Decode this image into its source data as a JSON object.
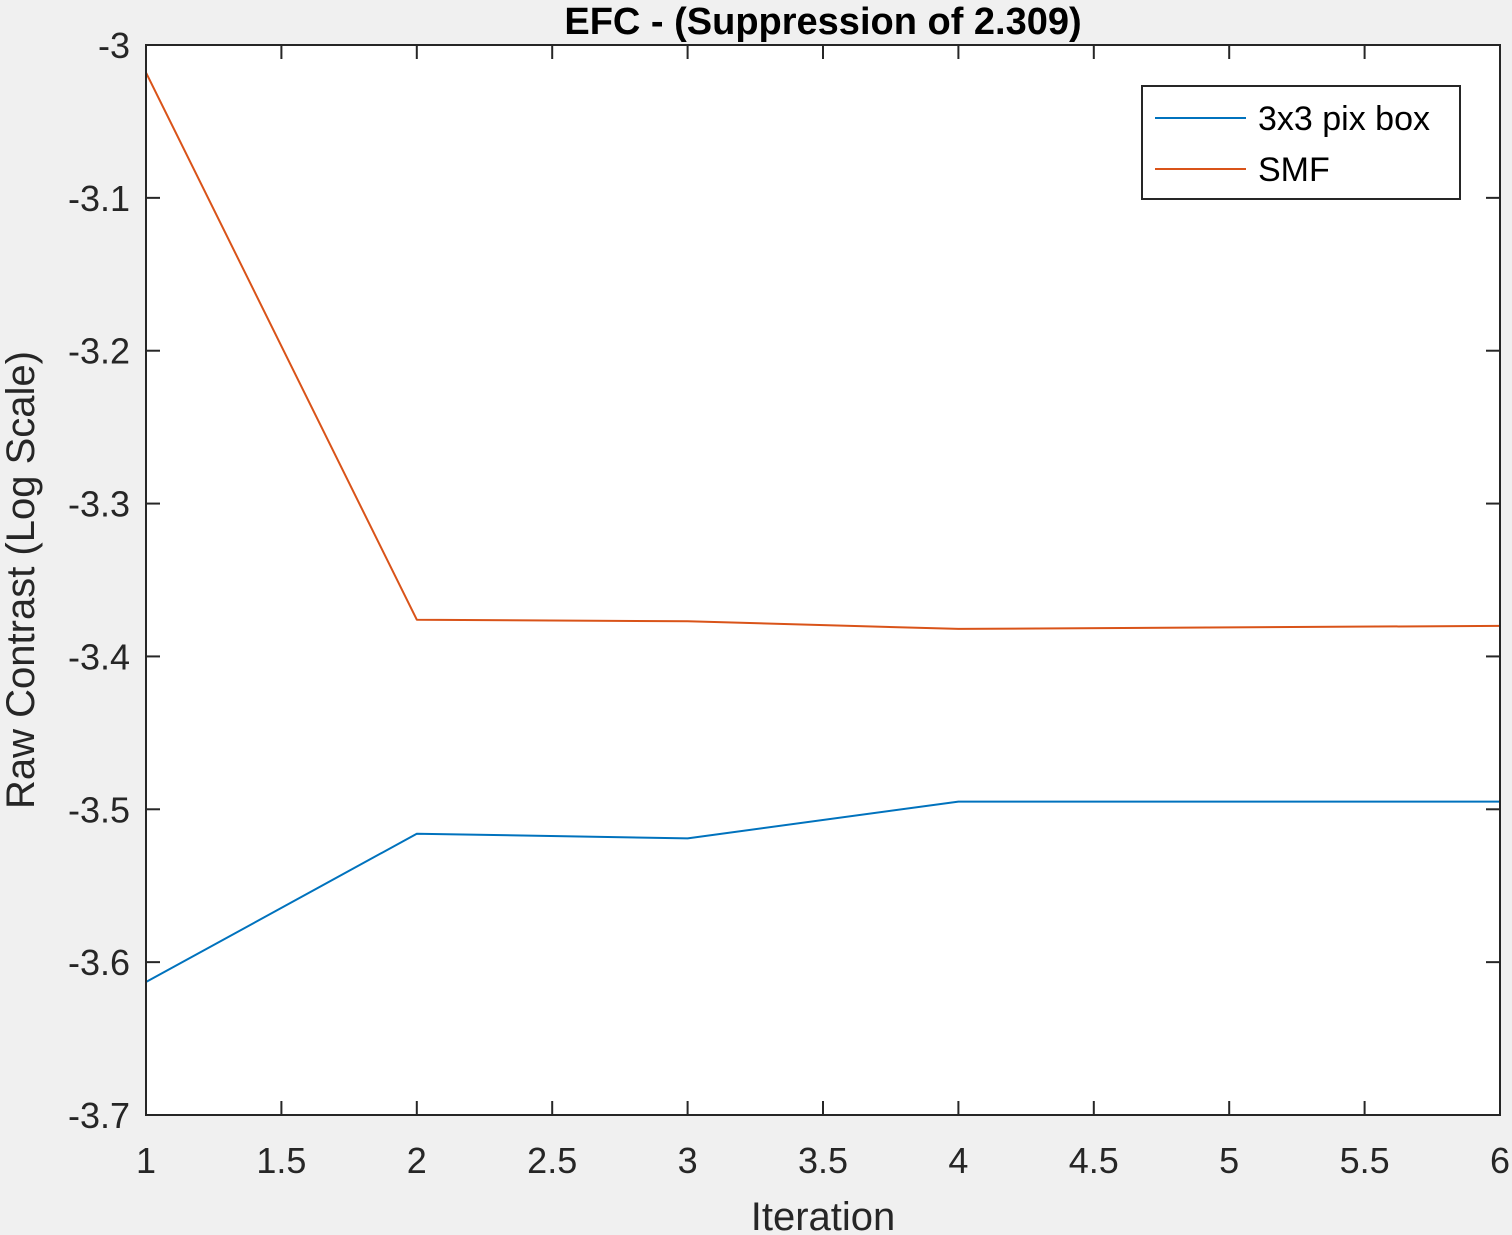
{
  "chart_data": {
    "type": "line",
    "title": "EFC -  (Suppression of 2.309)",
    "xlabel": "Iteration",
    "ylabel": "Raw Contrast (Log Scale)",
    "x": [
      1,
      2,
      3,
      4,
      5,
      6
    ],
    "xlim": [
      1,
      6
    ],
    "ylim": [
      -3.7,
      -3
    ],
    "xticks": [
      1,
      1.5,
      2,
      2.5,
      3,
      3.5,
      4,
      4.5,
      5,
      5.5,
      6
    ],
    "xtick_labels": [
      "1",
      "1.5",
      "2",
      "2.5",
      "3",
      "3.5",
      "4",
      "4.5",
      "5",
      "5.5",
      "6"
    ],
    "yticks": [
      -3,
      -3.1,
      -3.2,
      -3.3,
      -3.4,
      -3.5,
      -3.6,
      -3.7
    ],
    "ytick_labels": [
      "-3",
      "-3.1",
      "-3.2",
      "-3.3",
      "-3.4",
      "-3.5",
      "-3.6",
      "-3.7"
    ],
    "grid": false,
    "legend_position": "top-right",
    "series": [
      {
        "name": "3x3 pix box",
        "color": "#0072bd",
        "values": [
          -3.613,
          -3.516,
          -3.519,
          -3.495,
          -3.495,
          -3.495
        ]
      },
      {
        "name": "SMF",
        "color": "#d95319",
        "values": [
          -3.018,
          -3.376,
          -3.377,
          -3.382,
          -3.381,
          -3.38
        ]
      }
    ]
  }
}
